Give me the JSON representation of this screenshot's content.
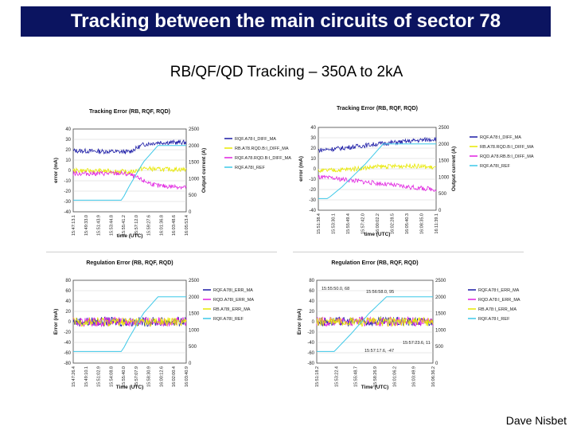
{
  "slide": {
    "title": "Tracking between the main circuits of sector 78",
    "subtitle": "RB/QF/QD Tracking – 350A to 2kA",
    "author": "Dave  Nisbet",
    "colors": {
      "title_bg": "#0b1460",
      "title_text": "#ffffff"
    }
  },
  "chart_data": [
    {
      "type": "line",
      "title": "Tracking Error (RB, RQF, RQD)",
      "xlabel": "time (UTC)",
      "ylabel": "error (mA)",
      "y2label": "Output current (A)",
      "ylim": [
        -40,
        40
      ],
      "yticks": [
        "40",
        "30",
        "20",
        "10",
        "0",
        "-10",
        "-20",
        "-30",
        "-40"
      ],
      "y2lim": [
        0,
        2500
      ],
      "y2ticks": [
        "2500",
        "2000",
        "1500",
        "1000",
        "500",
        "0"
      ],
      "xticks": [
        "15:47:13.1",
        "15:49:33.0",
        "15:51:43.9",
        "15:53:44.8",
        "15:55:41.2",
        "15:57:12.0",
        "15:59:27.6",
        "16:01:36.8",
        "16:03:48.6",
        "16:05:53.4"
      ],
      "legend": [
        "RQF.A78:I_DIFF_MA",
        "RB.A78.RQD.B:I_DIFF_MA",
        "RQF.A78.RQD.B:I_DIFF_MA",
        "RQF.A78I_REF"
      ],
      "series": [
        {
          "name": "RQF.A78:I_DIFF_MA",
          "color": "#1a1aa6",
          "axis": "y",
          "x": [
            0,
            0.43,
            0.5,
            0.62,
            0.75,
            1
          ],
          "values": [
            19,
            18,
            18,
            25,
            27,
            27
          ]
        },
        {
          "name": "RB.A78.RQD.B:I_DIFF_MA",
          "color": "#e8e800",
          "axis": "y",
          "x": [
            0,
            0.43,
            0.5,
            0.62,
            0.75,
            1
          ],
          "values": [
            0,
            -1,
            -2,
            2,
            1,
            1
          ]
        },
        {
          "name": "RQF.A78.RQD.B:I_DIFF_MA",
          "color": "#e020e0",
          "axis": "y",
          "x": [
            0,
            0.43,
            0.5,
            0.62,
            0.75,
            1
          ],
          "values": [
            -3,
            -3,
            -4,
            -10,
            -15,
            -16
          ]
        },
        {
          "name": "RQF.A78I_REF",
          "color": "#3cc8e8",
          "axis": "y2",
          "x": [
            0,
            0.43,
            0.5,
            0.62,
            0.75,
            1
          ],
          "values": [
            350,
            350,
            800,
            1500,
            2000,
            2000
          ]
        }
      ]
    },
    {
      "type": "line",
      "title": "Tracking Error (RB, RQF, RQD)",
      "xlabel": "time (UTC)",
      "ylabel": "error (mA)",
      "y2label": "Output current (A)",
      "ylim": [
        -40,
        40
      ],
      "yticks": [
        "40",
        "30",
        "20",
        "10",
        "0",
        "-10",
        "-20",
        "-30",
        "-40"
      ],
      "y2lim": [
        0,
        2500
      ],
      "y2ticks": [
        "2500",
        "2000",
        "1500",
        "1000",
        "500",
        "0"
      ],
      "xticks": [
        "15:51:38.4",
        "15:53:30.1",
        "15:55:49.4",
        "15:57:42.0",
        "16:00:02.2",
        "16:02:28.5",
        "16:05:40.3",
        "16:08:35.0",
        "16:11:39.1"
      ],
      "legend": [
        "RQF.A78:I_DIFF_MA",
        "RB.A78.RQD.B:I_DIFF_MA",
        "RQD.A78.RB.B:I_DIFF_MA",
        "RQF.A78I_REF"
      ],
      "series": [
        {
          "name": "RQF.A78:I_DIFF_MA",
          "color": "#1a1aa6",
          "axis": "y",
          "x": [
            0,
            0.2,
            0.5,
            0.8,
            1
          ],
          "values": [
            18,
            20,
            24,
            27,
            29
          ]
        },
        {
          "name": "RB.A78.RQD.B:I_DIFF_MA",
          "color": "#e8e800",
          "axis": "y",
          "x": [
            0,
            0.2,
            0.5,
            0.8,
            1
          ],
          "values": [
            -2,
            -1,
            2,
            3,
            1
          ]
        },
        {
          "name": "RQD.A78.RB.B:I_DIFF_MA",
          "color": "#e020e0",
          "axis": "y",
          "x": [
            0,
            0.2,
            0.5,
            0.8,
            1
          ],
          "values": [
            -8,
            -10,
            -14,
            -18,
            -20
          ]
        },
        {
          "name": "RQF.A78I_REF",
          "color": "#3cc8e8",
          "axis": "y2",
          "x": [
            0,
            0.08,
            0.2,
            0.4,
            0.55,
            0.7,
            1
          ],
          "values": [
            350,
            350,
            700,
            1400,
            2000,
            2000,
            2000
          ]
        }
      ]
    },
    {
      "type": "line",
      "title": "Regulation Error (RB, RQF, RQD)",
      "xlabel": "Time (UTC)",
      "ylabel": "Error (mA)",
      "y2label": "",
      "ylim": [
        -80,
        80
      ],
      "yticks": [
        "80",
        "60",
        "40",
        "20",
        "0",
        "-20",
        "-40",
        "-60",
        "-80"
      ],
      "y2lim": [
        0,
        2500
      ],
      "y2ticks": [
        "2500",
        "2000",
        "1500",
        "1000",
        "500",
        "0"
      ],
      "xticks": [
        "15:47:26.4",
        "15:49:10.1",
        "15:51:02.9",
        "15:54:08.8",
        "15:55:40.0",
        "15:57:07.9",
        "15:58:30.9",
        "16:00:12.6",
        "16:02:00.4",
        "16:03:40.9"
      ],
      "legend": [
        "RQF.A78I_ERR_MA",
        "RQD.A78I_ERR_MA",
        "RB.A78I_ERR_MA",
        "RQF.A78I_REF"
      ],
      "series": [
        {
          "name": "RQF.A78I_ERR_MA",
          "color": "#1a1aa6",
          "axis": "y",
          "x": [
            0,
            1
          ],
          "values": [
            0,
            0
          ]
        },
        {
          "name": "RQD.A78I_ERR_MA",
          "color": "#e020e0",
          "axis": "y",
          "x": [
            0,
            1
          ],
          "values": [
            0,
            0
          ]
        },
        {
          "name": "RB.A78I_ERR_MA",
          "color": "#e8e800",
          "axis": "y",
          "x": [
            0,
            1
          ],
          "values": [
            0,
            0
          ]
        },
        {
          "name": "RQF.A78I_REF",
          "color": "#3cc8e8",
          "axis": "y2",
          "x": [
            0,
            0.43,
            0.5,
            0.62,
            0.75,
            1
          ],
          "values": [
            350,
            350,
            800,
            1500,
            2000,
            2000
          ]
        }
      ]
    },
    {
      "type": "line",
      "title": "Regulation Error (RB, RQF, RQD)",
      "xlabel": "Time (UTC)",
      "ylabel": "Error (mA)",
      "y2label": "",
      "ylim": [
        -80,
        80
      ],
      "yticks": [
        "80",
        "60",
        "40",
        "20",
        "0",
        "-20",
        "-40",
        "-60",
        "-80"
      ],
      "y2lim": [
        0,
        2500
      ],
      "y2ticks": [
        "2500",
        "2000",
        "1500",
        "1000",
        "500",
        "0"
      ],
      "xticks": [
        "15:51:18.2",
        "15:53:22.4",
        "15:55:48.7",
        "15:58:26.9",
        "16:01:06.2",
        "16:03:49.9",
        "16:06:36.2"
      ],
      "legend": [
        "RQF.A78:I_ERR_MA",
        "RQD.A78:I_ERR_MA",
        "RB.A78:I_ERR_MA",
        "RQF.A78:I_REF"
      ],
      "annotations": [
        "15:55:50.0, 68",
        "15:56:58.0, 95",
        "15:57:17.6, -47",
        "15:57:23.6, 11"
      ],
      "series": [
        {
          "name": "RQF.A78:I_ERR_MA",
          "color": "#1a1aa6",
          "axis": "y",
          "x": [
            0,
            1
          ],
          "values": [
            0,
            0
          ]
        },
        {
          "name": "RQD.A78:I_ERR_MA",
          "color": "#e020e0",
          "axis": "y",
          "x": [
            0,
            1
          ],
          "values": [
            0,
            0
          ]
        },
        {
          "name": "RB.A78:I_ERR_MA",
          "color": "#e8e800",
          "axis": "y",
          "x": [
            0,
            1
          ],
          "values": [
            0,
            0
          ]
        },
        {
          "name": "RQF.A78:I_REF",
          "color": "#3cc8e8",
          "axis": "y2",
          "x": [
            0,
            0.15,
            0.3,
            0.45,
            0.6,
            1
          ],
          "values": [
            350,
            350,
            900,
            1500,
            2000,
            2000
          ]
        }
      ]
    }
  ]
}
